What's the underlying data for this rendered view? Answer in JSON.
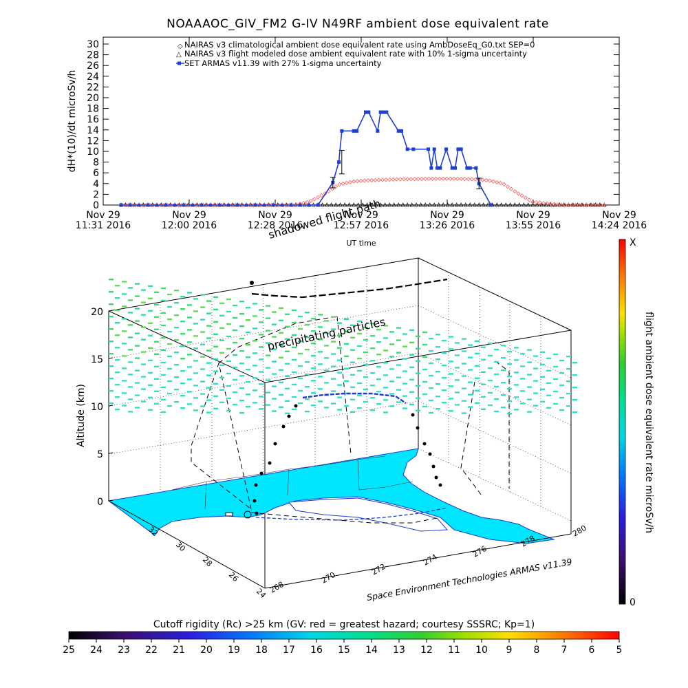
{
  "chart_data": [
    {
      "type": "line",
      "title": "NOAAAOC_GIV_FM2 G-IV   N49RF  ambient dose equivalent rate",
      "ylabel": "dH*(10)/dt microSv/h",
      "xlabel": "UT time",
      "ylim": [
        0,
        30
      ],
      "yticks": [
        "0",
        "2",
        "4",
        "6",
        "8",
        "10",
        "12",
        "14",
        "16",
        "18",
        "20",
        "22",
        "24",
        "26",
        "28",
        "30"
      ],
      "xticks": [
        {
          "line1": "Nov 29",
          "line2": "11:31 2016"
        },
        {
          "line1": "Nov 29",
          "line2": "12:00 2016"
        },
        {
          "line1": "Nov 29",
          "line2": "12:28 2016"
        },
        {
          "line1": "Nov 29",
          "line2": "12:57 2016"
        },
        {
          "line1": "Nov 29",
          "line2": "13:26 2016"
        },
        {
          "line1": "Nov 29",
          "line2": "13:55 2016"
        },
        {
          "line1": "Nov 29",
          "line2": "14:24 2016"
        }
      ],
      "x_minutes_start": 691,
      "x_minutes_end": 864,
      "legend_position": "top",
      "series": [
        {
          "name": "NAIRAS v3 climatological ambient dose equivalent rate using AmbDoseEq_G0.txt SEP=0",
          "color": "#ff5a5a",
          "marker": "diamond",
          "x": [
            697,
            720,
            745,
            755,
            760,
            765,
            770,
            775,
            780,
            790,
            800,
            810,
            815,
            820,
            825,
            830,
            835,
            845,
            860
          ],
          "y": [
            0,
            0,
            0,
            0,
            0.6,
            2,
            3.8,
            4.4,
            4.6,
            4.8,
            4.9,
            4.9,
            4.8,
            4.6,
            4.0,
            2.2,
            0.6,
            0,
            0
          ]
        },
        {
          "name": "NAIRAS v3 flight modeled dose ambient equivalent rate with 10% 1-sigma uncertainty",
          "color": "#000000",
          "marker": "triangle",
          "x": [
            697,
            860
          ],
          "y": [
            0,
            0
          ]
        },
        {
          "name": "SET ARMAS v11.39 with 27% 1-sigma uncertainty",
          "color": "#1e3fd2",
          "marker": "circle",
          "x": [
            697,
            763,
            768,
            770,
            771,
            775,
            776,
            779,
            780,
            783,
            784,
            785,
            786,
            790,
            791,
            793,
            795,
            800,
            801,
            802,
            803,
            804,
            806,
            808,
            809,
            810,
            811,
            813,
            814,
            816,
            817,
            821
          ],
          "y": [
            0,
            0,
            4.2,
            8.0,
            13.8,
            13.8,
            13.8,
            17.3,
            17.3,
            13.8,
            17.3,
            17.3,
            17.3,
            13.8,
            13.8,
            10.4,
            10.4,
            10.4,
            6.9,
            10.4,
            6.9,
            6.9,
            10.4,
            6.9,
            6.9,
            10.4,
            10.4,
            6.9,
            6.9,
            6.9,
            4.0,
            0
          ]
        }
      ]
    },
    {
      "type": "scatter",
      "subtype": "3d-flight-path-map",
      "zlabel": "Altitude (km)",
      "zticks": [
        "0",
        "5",
        "10",
        "15",
        "20"
      ],
      "lat_ticks": [
        "24",
        "26",
        "28",
        "30",
        "32"
      ],
      "lon_ticks": [
        "268",
        "270",
        "272",
        "274",
        "276",
        "278",
        "280"
      ],
      "annotations": [
        "shadowed flight path",
        "precipitating particles"
      ],
      "credit": "Space Environment Technologies ARMAS v11.39",
      "colorbar_right": {
        "label": "flight ambient dose equivalent rate microSv/h",
        "top": "X",
        "bottom": "0"
      },
      "colorbar_bottom": {
        "label": "Cutoff rigidity (Rc) >25 km (GV: red = greatest hazard; courtesy SSSRC; Kp=1)",
        "ticks": [
          "25",
          "24",
          "23",
          "22",
          "21",
          "20",
          "19",
          "18",
          "17",
          "16",
          "15",
          "14",
          "13",
          "12",
          "11",
          "10",
          "9",
          "8",
          "7",
          "6",
          "5"
        ]
      },
      "colors": {
        "land": "#00e6ff",
        "particles": "#43d86e",
        "flight_low": "#000000",
        "flight_high": "#2a2ad8"
      }
    }
  ]
}
